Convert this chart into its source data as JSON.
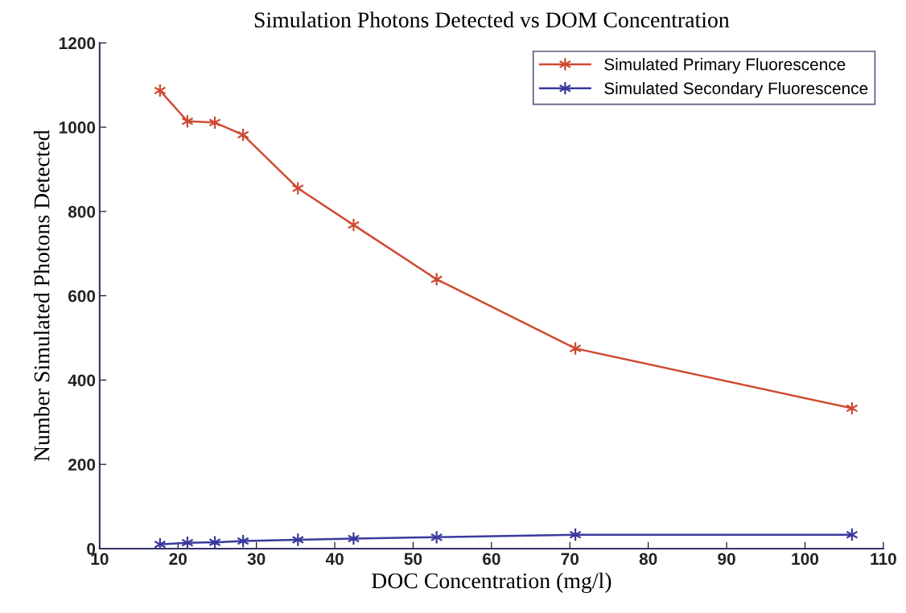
{
  "chart_data": {
    "type": "line",
    "title": "Simulation Photons Detected vs DOM Concentration",
    "xlabel": "DOC Concentration (mg/l)",
    "ylabel": "Number Simulated Photons Detected",
    "x": [
      17.7,
      21.2,
      24.7,
      28.3,
      35.3,
      42.4,
      53,
      70.7,
      106
    ],
    "series": [
      {
        "name": "Simulated Primary Fluorescence",
        "color": "#cf4a32",
        "values": [
          1087,
          1014,
          1011,
          982,
          855,
          768,
          639,
          475,
          333
        ]
      },
      {
        "name": "Simulated Secondary Fluorescence",
        "color": "#3a3a9e",
        "values": [
          10,
          14,
          15,
          18,
          21,
          24,
          27,
          33,
          33
        ]
      }
    ],
    "xlim": [
      10,
      110
    ],
    "xticks": [
      10,
      20,
      30,
      40,
      50,
      60,
      70,
      80,
      90,
      100,
      110
    ],
    "ylim": [
      0,
      1200
    ],
    "yticks": [
      0,
      200,
      400,
      600,
      800,
      1000,
      1200
    ],
    "grid": false,
    "legend": "top right",
    "marker": "cross",
    "line_style": "solid"
  }
}
